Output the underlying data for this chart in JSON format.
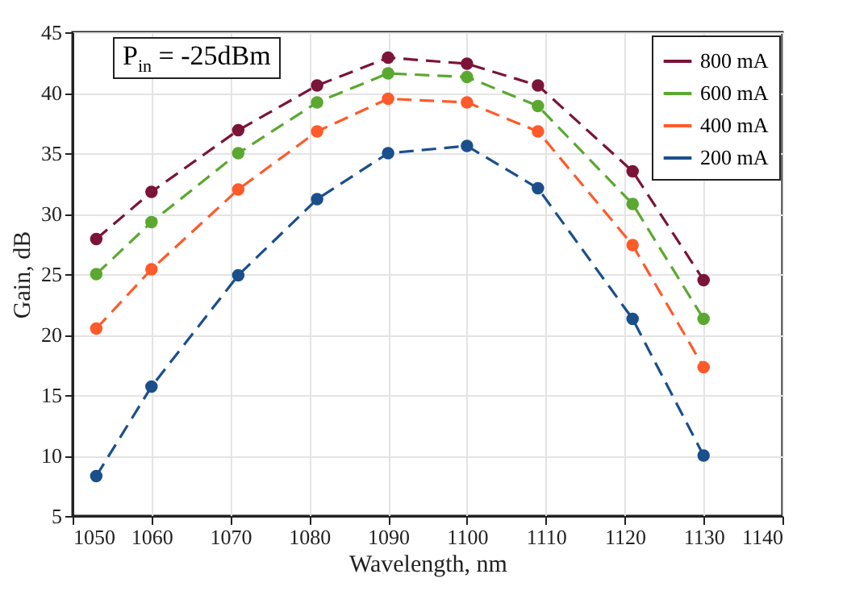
{
  "chart_data": {
    "type": "line",
    "xlabel": "Wavelength, nm",
    "ylabel": "Gain, dB",
    "annotations": [
      "P$_{in}$ = -25dBm"
    ],
    "x": [
      1053,
      1060,
      1071,
      1081,
      1090,
      1100,
      1109,
      1121,
      1130
    ],
    "series": [
      {
        "name": "800 mA",
        "color": "#7b1438",
        "values": [
          27.9,
          31.8,
          36.9,
          40.6,
          42.9,
          42.4,
          40.6,
          33.5,
          24.5
        ]
      },
      {
        "name": "600 mA",
        "color": "#5aa830",
        "values": [
          25,
          29.3,
          35,
          39.2,
          41.6,
          41.3,
          38.9,
          30.8,
          21.3
        ]
      },
      {
        "name": "400 mA",
        "color": "#ff5a2a",
        "values": [
          20.5,
          25.4,
          32,
          36.8,
          39.5,
          39.2,
          36.8,
          27.4,
          17.3
        ]
      },
      {
        "name": "200 mA",
        "color": "#1a4f8c",
        "values": [
          8.3,
          15.7,
          24.9,
          31.2,
          35,
          35.6,
          32.1,
          21.3,
          10
        ]
      }
    ],
    "xlim": [
      1050,
      1140
    ],
    "xticks": [
      1050,
      1060,
      1070,
      1080,
      1090,
      1100,
      1110,
      1120,
      1130,
      1140
    ],
    "ylim": [
      5,
      45
    ],
    "yticks": [
      5,
      10,
      15,
      20,
      25,
      30,
      35,
      40,
      45
    ],
    "grid": true,
    "legend": "top right",
    "marker": "circle",
    "line_style": "dashed"
  }
}
